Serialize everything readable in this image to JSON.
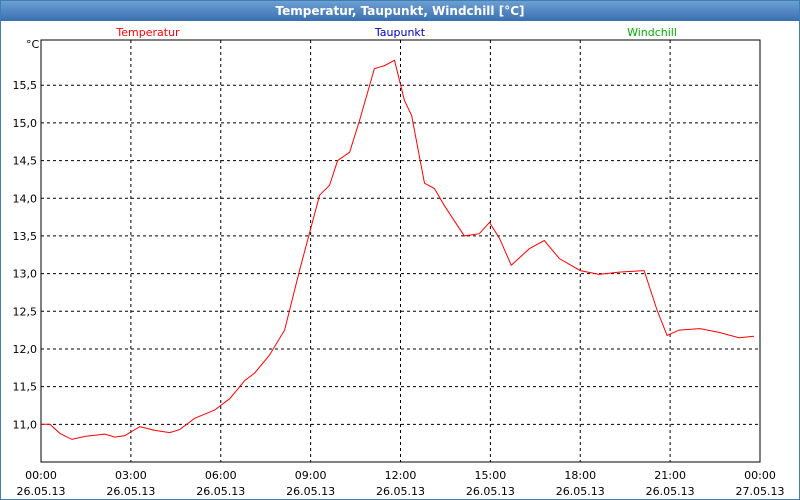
{
  "window_title": "Temperatur, Taupunkt, Windchill [°C]",
  "chart_data": {
    "type": "line",
    "y_unit": "°C",
    "x": [
      0,
      0.3,
      0.63,
      1.03,
      1.47,
      2.13,
      2.47,
      2.8,
      3.3,
      3.8,
      4.3,
      4.63,
      5.13,
      5.8,
      6.3,
      6.8,
      7.13,
      7.63,
      8.13,
      8.63,
      9.3,
      9.63,
      9.9,
      10.3,
      10.63,
      11.13,
      11.47,
      11.8,
      12.13,
      12.37,
      12.8,
      13.13,
      13.47,
      14.13,
      14.63,
      14.97,
      15.3,
      15.7,
      16.3,
      16.8,
      17.3,
      18.0,
      18.63,
      19.3,
      20.13,
      20.57,
      20.9,
      21.3,
      22.0,
      22.63,
      23.3,
      23.8
    ],
    "series": [
      {
        "name": "Temperatur",
        "color": "#ff0000",
        "values": [
          11.0,
          11.0,
          10.88,
          10.8,
          10.84,
          10.87,
          10.83,
          10.85,
          10.97,
          10.92,
          10.89,
          10.93,
          11.08,
          11.19,
          11.34,
          11.58,
          11.68,
          11.92,
          12.25,
          13.04,
          14.04,
          14.17,
          14.5,
          14.61,
          15.03,
          15.72,
          15.76,
          15.83,
          15.3,
          15.1,
          14.2,
          14.13,
          13.9,
          13.5,
          13.53,
          13.68,
          13.47,
          13.11,
          13.33,
          13.44,
          13.2,
          13.04,
          12.99,
          13.02,
          13.04,
          12.51,
          12.18,
          12.25,
          12.27,
          12.22,
          12.15,
          12.17
        ]
      },
      {
        "name": "Taupunkt",
        "color": "#0000c0",
        "values": [
          null,
          null,
          null,
          null,
          null,
          null,
          null,
          null,
          null,
          null,
          null,
          null,
          null,
          null,
          null,
          null,
          null,
          null,
          null,
          null,
          null,
          null,
          null,
          null,
          null,
          null,
          null,
          null,
          null,
          null,
          null,
          null,
          null,
          null,
          null,
          null,
          null,
          null,
          null,
          null,
          null,
          null,
          null,
          null,
          null,
          null,
          null,
          null,
          null,
          null,
          null,
          null
        ]
      },
      {
        "name": "Windchill",
        "color": "#00b000",
        "values": [
          null,
          null,
          null,
          null,
          null,
          null,
          null,
          null,
          null,
          null,
          null,
          null,
          null,
          null,
          null,
          null,
          null,
          null,
          null,
          null,
          null,
          null,
          null,
          null,
          null,
          null,
          null,
          null,
          null,
          null,
          null,
          null,
          null,
          null,
          null,
          null,
          null,
          null,
          null,
          null,
          null,
          null,
          null,
          null,
          null,
          null,
          null,
          null,
          null,
          null,
          null,
          null
        ]
      }
    ],
    "xlim": [
      0,
      24
    ],
    "xticks": [
      {
        "value": 0,
        "label": "00:00"
      },
      {
        "value": 3,
        "label": "03:00"
      },
      {
        "value": 6,
        "label": "06:00"
      },
      {
        "value": 9,
        "label": "09:00"
      },
      {
        "value": 12,
        "label": "12:00"
      },
      {
        "value": 15,
        "label": "15:00"
      },
      {
        "value": 18,
        "label": "18:00"
      },
      {
        "value": 21,
        "label": "21:00"
      },
      {
        "value": 24,
        "label": "00:00"
      }
    ],
    "xtick_dates": [
      "26.05.13",
      "26.05.13",
      "26.05.13",
      "26.05.13",
      "26.05.13",
      "26.05.13",
      "26.05.13",
      "26.05.13",
      "27.05.13"
    ],
    "ylim": [
      10.5,
      16.1
    ],
    "yticks": [
      {
        "value": 11,
        "label": "11,0"
      },
      {
        "value": 11.5,
        "label": "11,5"
      },
      {
        "value": 12,
        "label": "12,0"
      },
      {
        "value": 12.5,
        "label": "12,5"
      },
      {
        "value": 13,
        "label": "13,0"
      },
      {
        "value": 13.5,
        "label": "13,5"
      },
      {
        "value": 14,
        "label": "14,0"
      },
      {
        "value": 14.5,
        "label": "14,5"
      },
      {
        "value": 15,
        "label": "15,0"
      },
      {
        "value": 15.5,
        "label": "15,5"
      }
    ],
    "grid": true
  }
}
